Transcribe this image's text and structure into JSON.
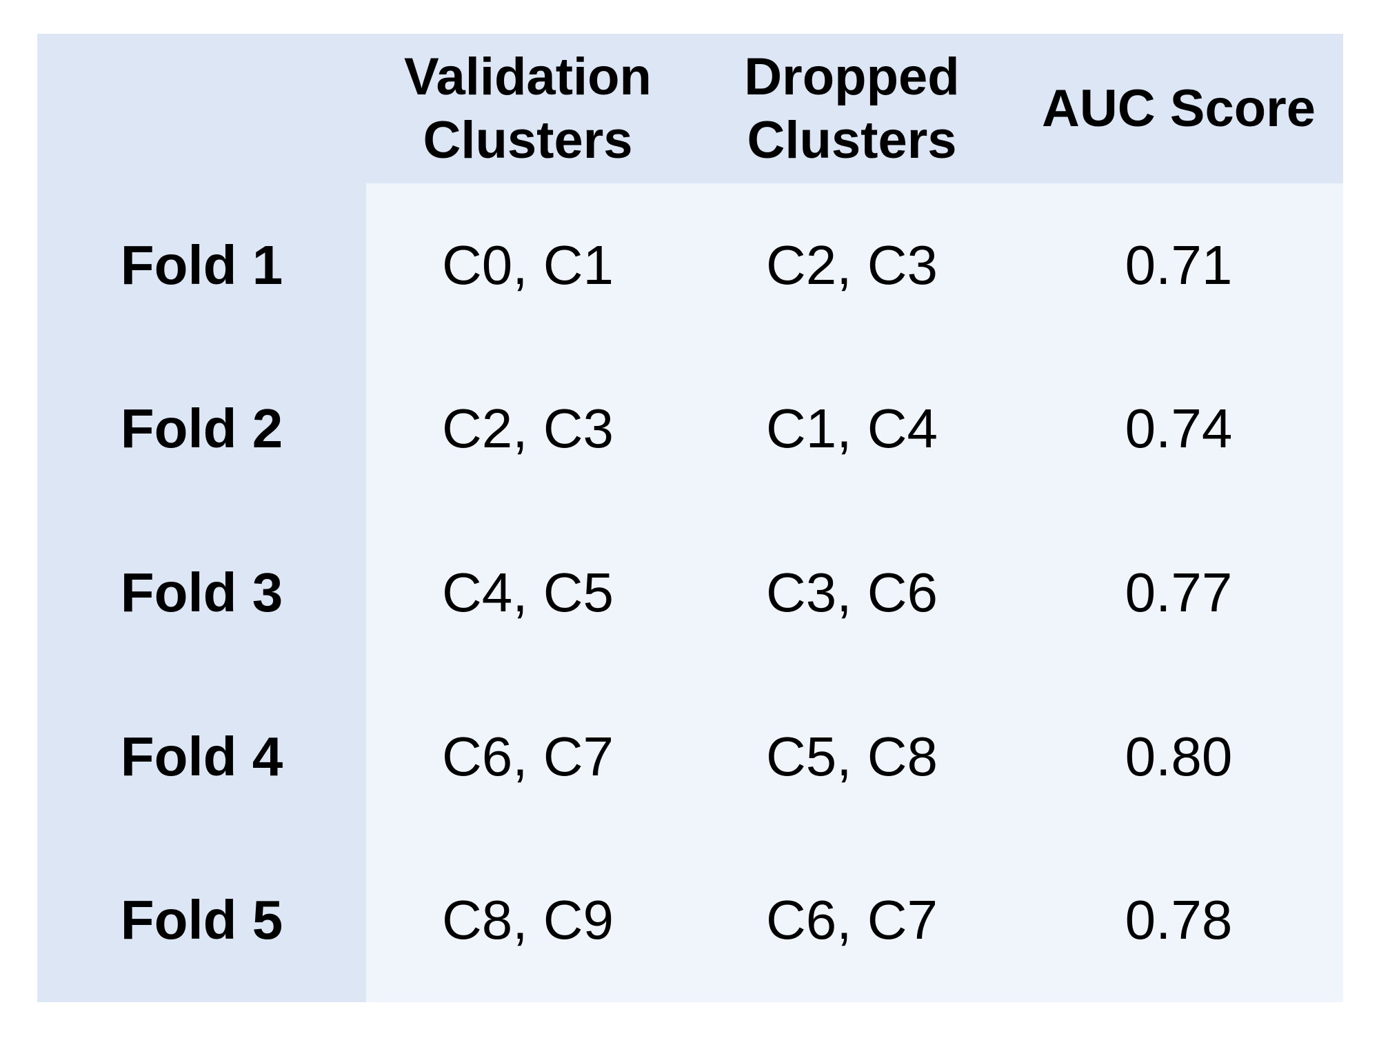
{
  "table": {
    "header": [
      "Validation Clusters",
      "Dropped Clusters",
      "AUC Score"
    ],
    "rows": [
      [
        "Fold 1",
        "C0, C1",
        "C2, C3",
        "0.71"
      ],
      [
        "Fold 2",
        "C2, C3",
        "C1, C4",
        "0.74"
      ],
      [
        "Fold 3",
        "C4, C5",
        "C3, C6",
        "0.77"
      ],
      [
        "Fold 4",
        "C6, C7",
        "C5, C8",
        "0.80"
      ],
      [
        "Fold 5",
        "C8, C9",
        "C6, C7",
        "0.78"
      ]
    ]
  }
}
